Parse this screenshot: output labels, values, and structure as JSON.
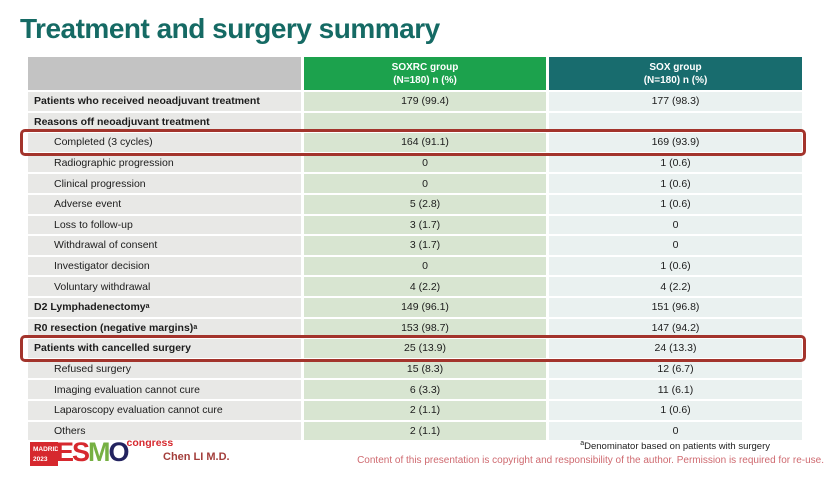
{
  "slide": {
    "title": "Treatment and surgery summary",
    "presenter": "Chen LI M.D.",
    "footnote": {
      "sup": "a",
      "text": "Denominator based on patients with surgery"
    },
    "copyright": "Content of this presentation is copyright and responsibility of the author. Permission is required for re-use."
  },
  "logo": {
    "city": "MADRID",
    "year": "2023",
    "letter_e": "E",
    "letter_s": "S",
    "letter_m": "M",
    "letter_o": "O",
    "suffix": "congress"
  },
  "colors": {
    "title": "#156a64",
    "header_soxrc": "#1ca24d",
    "header_sox": "#186c6e",
    "header_label": "#c3c3c3",
    "cell_label": "#e8e8e6",
    "cell_soxrc": "#d8e5d1",
    "cell_sox": "#eaf1f0",
    "highlight_border": "#a3342c",
    "copyright_text": "#cf6a70",
    "presenter_text": "#a33e3b"
  },
  "chart_data": {
    "type": "table",
    "title": "Treatment and surgery summary",
    "columns": [
      "",
      "SOXRC group (N=180) n (%)",
      "SOX group (N=180) n (%)"
    ],
    "rows": [
      [
        "Patients who received neoadjuvant treatment",
        "179 (99.4)",
        "177 (98.3)"
      ],
      [
        "Reasons off neoadjuvant treatment",
        "",
        ""
      ],
      [
        "Completed (3 cycles)",
        "164 (91.1)",
        "169 (93.9)"
      ],
      [
        "Radiographic progression",
        "0",
        "1 (0.6)"
      ],
      [
        "Clinical progression",
        "0",
        "1 (0.6)"
      ],
      [
        "Adverse event",
        "5 (2.8)",
        "1 (0.6)"
      ],
      [
        "Loss to follow-up",
        "3 (1.7)",
        "0"
      ],
      [
        "Withdrawal of consent",
        "3 (1.7)",
        "0"
      ],
      [
        "Investigator decision",
        "0",
        "1 (0.6)"
      ],
      [
        "Voluntary withdrawal",
        "4 (2.2)",
        "4 (2.2)"
      ],
      [
        "D2 Lymphadenectomy(a)",
        "149 (96.1)",
        "151 (96.8)"
      ],
      [
        "R0 resection (negative margins)(a)",
        "153 (98.7)",
        "147 (94.2)"
      ],
      [
        "Patients with cancelled surgery",
        "25 (13.9)",
        "24 (13.3)"
      ],
      [
        "Refused surgery",
        "15 (8.3)",
        "12 (6.7)"
      ],
      [
        "Imaging evaluation cannot cure",
        "6 (3.3)",
        "11 (6.1)"
      ],
      [
        "Laparoscopy evaluation cannot cure",
        "2 (1.1)",
        "1 (0.6)"
      ],
      [
        "Others",
        "2 (1.1)",
        "0"
      ]
    ]
  },
  "table": {
    "header": {
      "label": "",
      "soxrc_line1": "SOXRC group",
      "soxrc_line2": "(N=180)  n (%)",
      "sox_line1": "SOX group",
      "sox_line2": "(N=180)  n (%)"
    },
    "rows": [
      {
        "label": "Patients who received neoadjuvant treatment",
        "sup": "",
        "soxrc": "179 (99.4)",
        "sox": "177 (98.3)",
        "bold": true,
        "indent": false,
        "highlight": false
      },
      {
        "label": "Reasons off neoadjuvant treatment",
        "sup": "",
        "soxrc": "",
        "sox": "",
        "bold": true,
        "indent": false,
        "highlight": false
      },
      {
        "label": "Completed (3 cycles)",
        "sup": "",
        "soxrc": "164 (91.1)",
        "sox": "169 (93.9)",
        "bold": false,
        "indent": true,
        "highlight": true
      },
      {
        "label": "Radiographic progression",
        "sup": "",
        "soxrc": "0",
        "sox": "1 (0.6)",
        "bold": false,
        "indent": true,
        "highlight": false
      },
      {
        "label": "Clinical progression",
        "sup": "",
        "soxrc": "0",
        "sox": "1 (0.6)",
        "bold": false,
        "indent": true,
        "highlight": false
      },
      {
        "label": "Adverse event",
        "sup": "",
        "soxrc": "5 (2.8)",
        "sox": "1 (0.6)",
        "bold": false,
        "indent": true,
        "highlight": false
      },
      {
        "label": "Loss to follow-up",
        "sup": "",
        "soxrc": "3 (1.7)",
        "sox": "0",
        "bold": false,
        "indent": true,
        "highlight": false
      },
      {
        "label": "Withdrawal of consent",
        "sup": "",
        "soxrc": "3 (1.7)",
        "sox": "0",
        "bold": false,
        "indent": true,
        "highlight": false
      },
      {
        "label": "Investigator decision",
        "sup": "",
        "soxrc": "0",
        "sox": "1 (0.6)",
        "bold": false,
        "indent": true,
        "highlight": false
      },
      {
        "label": "Voluntary withdrawal",
        "sup": "",
        "soxrc": "4 (2.2)",
        "sox": "4 (2.2)",
        "bold": false,
        "indent": true,
        "highlight": false
      },
      {
        "label": "D2 Lymphadenectomy",
        "sup": "a",
        "soxrc": "149 (96.1)",
        "sox": "151 (96.8)",
        "bold": true,
        "indent": false,
        "highlight": false
      },
      {
        "label": "R0 resection (negative margins)",
        "sup": "a",
        "soxrc": "153 (98.7)",
        "sox": "147 (94.2)",
        "bold": true,
        "indent": false,
        "highlight": false
      },
      {
        "label": "Patients with cancelled surgery",
        "sup": "",
        "soxrc": "25 (13.9)",
        "sox": "24 (13.3)",
        "bold": true,
        "indent": false,
        "highlight": true
      },
      {
        "label": "Refused surgery",
        "sup": "",
        "soxrc": "15 (8.3)",
        "sox": "12 (6.7)",
        "bold": false,
        "indent": true,
        "highlight": false
      },
      {
        "label": "Imaging evaluation cannot cure",
        "sup": "",
        "soxrc": "6 (3.3)",
        "sox": "11 (6.1)",
        "bold": false,
        "indent": true,
        "highlight": false
      },
      {
        "label": "Laparoscopy evaluation cannot cure",
        "sup": "",
        "soxrc": "2 (1.1)",
        "sox": "1 (0.6)",
        "bold": false,
        "indent": true,
        "highlight": false
      },
      {
        "label": "Others",
        "sup": "",
        "soxrc": "2 (1.1)",
        "sox": "0",
        "bold": false,
        "indent": true,
        "highlight": false
      }
    ]
  }
}
